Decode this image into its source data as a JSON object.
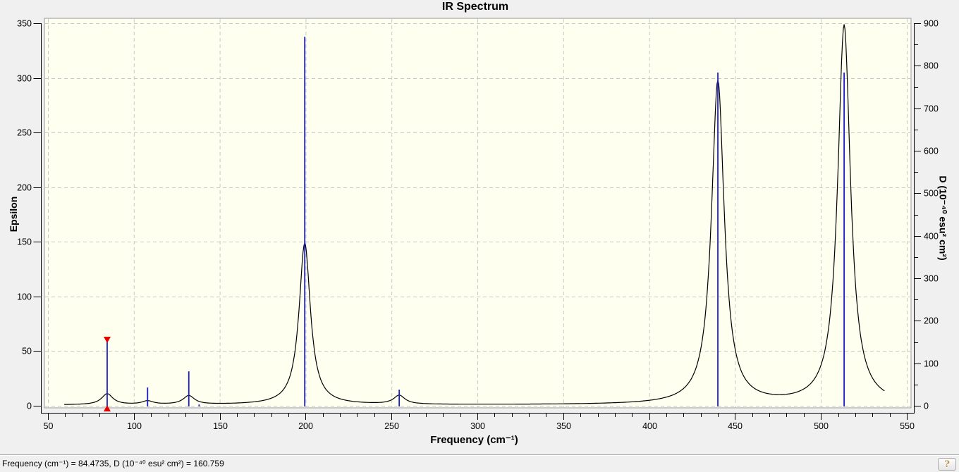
{
  "status_bar": {
    "text": "Frequency (cm⁻¹) = 84.4735, D (10⁻⁴⁰ esu² cm²) = 160.759",
    "help_label": "?"
  },
  "chart_data": {
    "type": "line",
    "title": "IR Spectrum",
    "xlabel": "Frequency (cm⁻¹)",
    "ylabel_left": "Epsilon",
    "ylabel_right": "D (10⁻⁴⁰ esu² cm²)",
    "x_axis": {
      "min": 50,
      "max": 550,
      "major_ticks": [
        50,
        100,
        150,
        200,
        250,
        300,
        350,
        400,
        450,
        500,
        550
      ],
      "minor_tick_step": 10
    },
    "y_axis_left": {
      "min": 0,
      "max": 350,
      "major_ticks": [
        0,
        50,
        100,
        150,
        200,
        250,
        300,
        350
      ]
    },
    "y_axis_right": {
      "min": 0,
      "max": 900,
      "major_ticks": [
        0,
        100,
        200,
        300,
        400,
        500,
        600,
        700,
        800,
        900
      ],
      "minor_tick_step": 50
    },
    "grid": {
      "show": true,
      "style": "dashed",
      "color": "#c8c8c8"
    },
    "plot_background": "#fffff0",
    "curve": {
      "name": "epsilon-spectrum",
      "color": "#000000",
      "axis": "left",
      "baseline": 0.7,
      "range": [
        59.5,
        537
      ],
      "peaks": [
        {
          "frequency": 84.5,
          "epsilon": 10,
          "hwhm": 4
        },
        {
          "frequency": 108,
          "epsilon": 3.2,
          "hwhm": 4
        },
        {
          "frequency": 132,
          "epsilon": 8,
          "hwhm": 4
        },
        {
          "frequency": 199.5,
          "epsilon": 148,
          "hwhm": 4
        },
        {
          "frequency": 254.5,
          "epsilon": 8,
          "hwhm": 4
        },
        {
          "frequency": 440,
          "epsilon": 296,
          "hwhm": 4.5
        },
        {
          "frequency": 513.5,
          "epsilon": 347,
          "hwhm": 4.5
        }
      ]
    },
    "impulses": {
      "name": "D-intensity-lines",
      "color": "#1c1ccd",
      "axis": "right",
      "points": [
        {
          "frequency": 84.4735,
          "D": 160.759,
          "selected": true
        },
        {
          "frequency": 108,
          "D": 43
        },
        {
          "frequency": 132,
          "D": 81
        },
        {
          "frequency": 138,
          "D": 3
        },
        {
          "frequency": 199.5,
          "D": 868
        },
        {
          "frequency": 254.5,
          "D": 38
        },
        {
          "frequency": 440,
          "D": 784
        },
        {
          "frequency": 513.5,
          "D": 784
        }
      ]
    },
    "selected_peak": {
      "frequency": 84.4735,
      "D": 160.759,
      "marker_color": "#e60000"
    }
  }
}
